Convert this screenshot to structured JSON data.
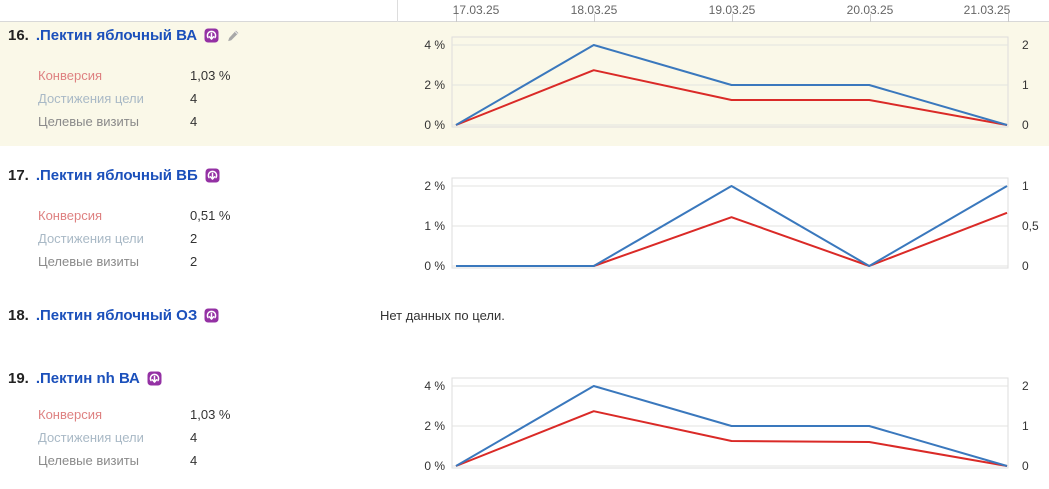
{
  "header": {
    "dates": [
      "17.03.25",
      "18.03.25",
      "19.03.25",
      "20.03.25",
      "21.03.25"
    ]
  },
  "colors": {
    "line_blue": "#3a78bd",
    "line_red": "#da2a27",
    "row_highlight": "#faf8e8",
    "title_blue": "#1b50bb",
    "icon_purple": "#9431a4",
    "pencil_gray": "#a8a8a8",
    "conversion_label": "#de8181",
    "reaches_label": "#a9b9c6",
    "visits_label": "#8a8a8a",
    "grid_line": "#e3e3e0",
    "plot_border": "#dddddd"
  },
  "metric_labels": {
    "conversion": "Конверсия",
    "goal_reaches": "Достижения цели",
    "goal_visits": "Целевые визиты"
  },
  "rows": [
    {
      "number": "16.",
      "title": ".Пектин яблочный ВА",
      "highlighted": true,
      "metrics": {
        "conversion": "1,03 %",
        "goal_reaches": "4",
        "goal_visits": "4"
      },
      "chart": {
        "type": "line",
        "x_dates": [
          "17.03.25",
          "18.03.25",
          "19.03.25",
          "20.03.25",
          "21.03.25"
        ],
        "ymax_pct": 4,
        "left_tick_labels": [
          "4 %",
          "2 %",
          "0 %"
        ],
        "right_tick_labels": [
          "2",
          "1",
          "0"
        ],
        "series": [
          {
            "name": "Конверсия",
            "color_key": "line_red",
            "values_pct": [
              0,
              2.74,
              1.25,
              1.25,
              0
            ]
          },
          {
            "name": "Достижения цели",
            "color_key": "line_blue",
            "values_pct": [
              0,
              4,
              2,
              2,
              0
            ],
            "values_right_axis": [
              0,
              2,
              1,
              1,
              0
            ]
          }
        ]
      }
    },
    {
      "number": "17.",
      "title": ".Пектин яблочный ВБ",
      "highlighted": false,
      "metrics": {
        "conversion": "0,51 %",
        "goal_reaches": "2",
        "goal_visits": "2"
      },
      "chart": {
        "type": "line",
        "x_dates": [
          "17.03.25",
          "18.03.25",
          "19.03.25",
          "20.03.25",
          "21.03.25"
        ],
        "ymax_pct": 2,
        "left_tick_labels": [
          "2 %",
          "1 %",
          "0 %"
        ],
        "right_tick_labels": [
          "1",
          "0,5",
          "0"
        ],
        "series": [
          {
            "name": "Конверсия",
            "color_key": "line_red",
            "values_pct": [
              0,
              0,
              1.22,
              0,
              1.33
            ]
          },
          {
            "name": "Достижения цели",
            "color_key": "line_blue",
            "values_pct": [
              0,
              0,
              2,
              0,
              2
            ],
            "values_right_axis": [
              0,
              0,
              1,
              0,
              1
            ]
          }
        ]
      }
    },
    {
      "number": "18.",
      "title": ".Пектин яблочный ОЗ",
      "highlighted": false,
      "no_data_text": "Нет данных по цели."
    },
    {
      "number": "19.",
      "title": ".Пектин nh ВА",
      "highlighted": false,
      "metrics": {
        "conversion": "1,03 %",
        "goal_reaches": "4",
        "goal_visits": "4"
      },
      "chart": {
        "type": "line",
        "x_dates": [
          "17.03.25",
          "18.03.25",
          "19.03.25",
          "20.03.25",
          "21.03.25"
        ],
        "ymax_pct": 4,
        "left_tick_labels": [
          "4 %",
          "2 %",
          "0 %"
        ],
        "right_tick_labels": [
          "2",
          "1",
          "0"
        ],
        "series": [
          {
            "name": "Конверсия",
            "color_key": "line_red",
            "values_pct": [
              0,
              2.74,
              1.25,
              1.2,
              0
            ]
          },
          {
            "name": "Достижения цели",
            "color_key": "line_blue",
            "values_pct": [
              0,
              4,
              2,
              2,
              0
            ],
            "values_right_axis": [
              0,
              2,
              1,
              1,
              0
            ]
          }
        ]
      }
    }
  ]
}
